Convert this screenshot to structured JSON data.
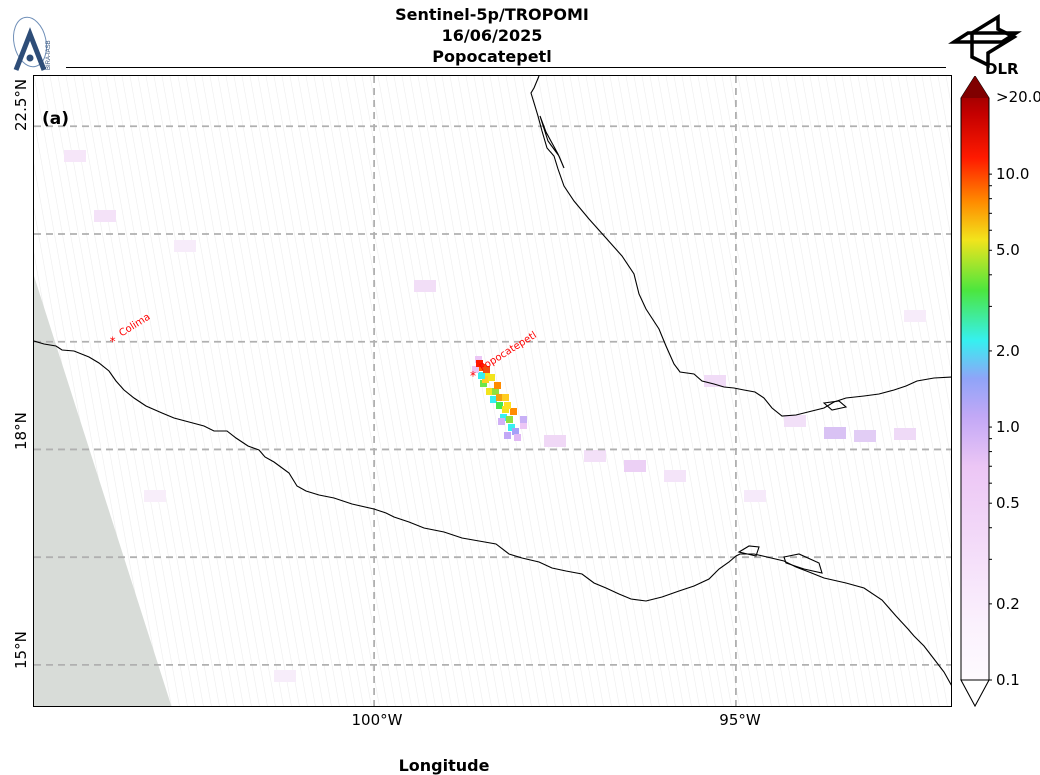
{
  "header": {
    "title_line1": "Sentinel-5p/TROPOMI",
    "title_line2": "16/06/2025",
    "title_line3": "Popocatepetl"
  },
  "logos": {
    "left": {
      "icon": "bira-iasb-logo",
      "text": "BIRA-IASB"
    },
    "right": {
      "icon": "dlr-logo",
      "text": "DLR"
    }
  },
  "map": {
    "panel_label": "(a)",
    "lon_range": [
      -104.7,
      -92.0
    ],
    "lat_range": [
      14.4,
      23.2
    ],
    "gridlines_lon": [
      -100,
      -95
    ],
    "gridlines_lat": [
      15,
      16.5,
      18,
      19.5,
      21,
      22.5
    ],
    "ticks_lat": [
      {
        "value": 22.5,
        "label": "22.5°N"
      },
      {
        "value": 18,
        "label": "18°N"
      },
      {
        "value": 15,
        "label": "15°N"
      }
    ],
    "ticks_lon": [
      {
        "value": -100,
        "label": "100°W"
      },
      {
        "value": -95,
        "label": "95°W"
      }
    ],
    "xlabel": "Longitude",
    "volcanoes": [
      {
        "name": "Colima",
        "lon": -103.6,
        "lat": 19.5
      },
      {
        "name": "Popocatepetl",
        "lon": -98.62,
        "lat": 19.02
      }
    ],
    "colors": {
      "marker": "#ff0000",
      "coast": "#000000",
      "nodata": "#d8dcd8",
      "grid": "#b0b0b0"
    }
  },
  "colorbar": {
    "scale": "log",
    "min": 0.1,
    "max": 20.0,
    "extend": "both",
    "ticks": [
      {
        "value": 0.1,
        "label": "0.1"
      },
      {
        "value": 0.2,
        "label": "0.2"
      },
      {
        "value": 0.5,
        "label": "0.5"
      },
      {
        "value": 1.0,
        "label": "1.0"
      },
      {
        "value": 2.0,
        "label": "2.0"
      },
      {
        "value": 5.0,
        "label": "5.0"
      },
      {
        "value": 10.0,
        "label": "10.0"
      }
    ],
    "top_label": ">20.0",
    "colors": [
      "#ffffff",
      "#f6e8fb",
      "#e8b8f2",
      "#a6a0f8",
      "#2ef4f4",
      "#40e040",
      "#f2e41c",
      "#ff8c00",
      "#ff0000",
      "#c80000",
      "#800000"
    ]
  }
}
